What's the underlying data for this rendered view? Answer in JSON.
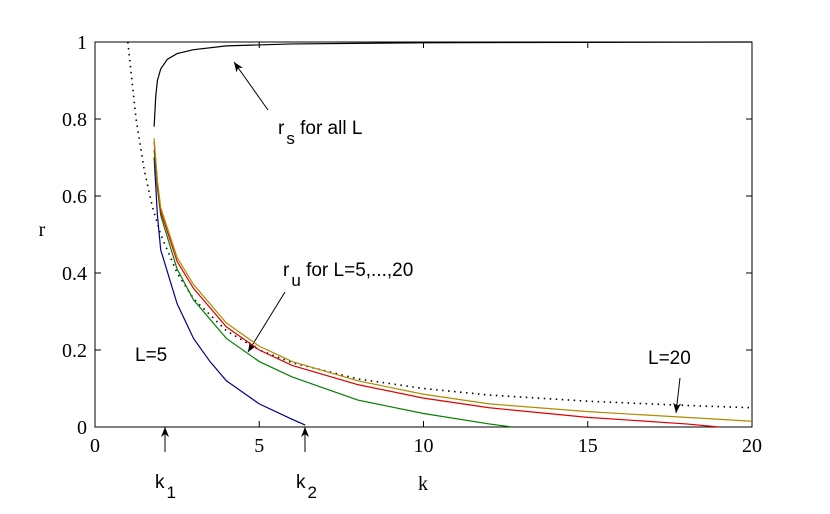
{
  "chart_data": {
    "type": "line",
    "x_label": "k",
    "y_label": "r",
    "xlim": [
      0,
      20
    ],
    "ylim": [
      0,
      1
    ],
    "xticks": [
      0,
      5,
      10,
      15,
      20
    ],
    "yticks": [
      0,
      0.2,
      0.4,
      0.6,
      0.8,
      1
    ],
    "series": [
      {
        "color": "#000000",
        "style": "solid",
        "x": [
          1.8,
          1.85,
          1.9,
          2,
          2.2,
          2.5,
          3,
          4,
          6,
          10,
          15,
          20
        ],
        "values": [
          0.78,
          0.86,
          0.9,
          0.93,
          0.955,
          0.97,
          0.98,
          0.99,
          0.995,
          0.998,
          0.999,
          1
        ]
      },
      {
        "color": "#000000",
        "style": "dotted",
        "x": [
          1,
          1.25,
          1.5,
          1.75,
          2,
          2.5,
          3,
          4,
          5,
          6,
          8,
          10,
          12,
          15,
          18,
          20
        ],
        "values": [
          1,
          0.8,
          0.667,
          0.571,
          0.5,
          0.4,
          0.333,
          0.25,
          0.2,
          0.167,
          0.125,
          0.1,
          0.083,
          0.067,
          0.056,
          0.05
        ]
      },
      {
        "color": "#00008b",
        "style": "solid",
        "x": [
          1.8,
          1.9,
          2,
          2.5,
          3,
          3.5,
          4,
          5,
          6,
          6.4
        ],
        "values": [
          0.7,
          0.55,
          0.46,
          0.32,
          0.23,
          0.17,
          0.12,
          0.06,
          0.02,
          0.005
        ]
      },
      {
        "color": "#008000",
        "style": "solid",
        "x": [
          1.8,
          1.9,
          2,
          2.5,
          3,
          4,
          5,
          6,
          8,
          10,
          12,
          12.7
        ],
        "values": [
          0.72,
          0.62,
          0.55,
          0.41,
          0.33,
          0.23,
          0.17,
          0.13,
          0.07,
          0.035,
          0.008,
          0
        ]
      },
      {
        "color": "#e00000",
        "style": "solid",
        "x": [
          1.8,
          1.9,
          2,
          2.5,
          3,
          4,
          5,
          6,
          8,
          10,
          12,
          15,
          18,
          19
        ],
        "values": [
          0.74,
          0.63,
          0.56,
          0.43,
          0.36,
          0.26,
          0.2,
          0.16,
          0.11,
          0.075,
          0.05,
          0.025,
          0.008,
          0
        ]
      },
      {
        "color": "#b08a00",
        "style": "solid",
        "x": [
          1.8,
          1.9,
          2,
          2.5,
          3,
          4,
          5,
          6,
          8,
          10,
          12,
          15,
          18,
          20
        ],
        "values": [
          0.75,
          0.64,
          0.57,
          0.44,
          0.37,
          0.27,
          0.21,
          0.17,
          0.12,
          0.085,
          0.06,
          0.04,
          0.025,
          0.015
        ]
      }
    ],
    "annotations": [
      {
        "text": "r",
        "sub": "s",
        "rest": " for all L"
      },
      {
        "text": "r",
        "sub": "u",
        "rest": " for L=5,...,20"
      },
      {
        "text": "L=5"
      },
      {
        "text": "L=20"
      },
      {
        "text": "k",
        "sub": "1"
      },
      {
        "text": "k",
        "sub": "2"
      }
    ]
  }
}
